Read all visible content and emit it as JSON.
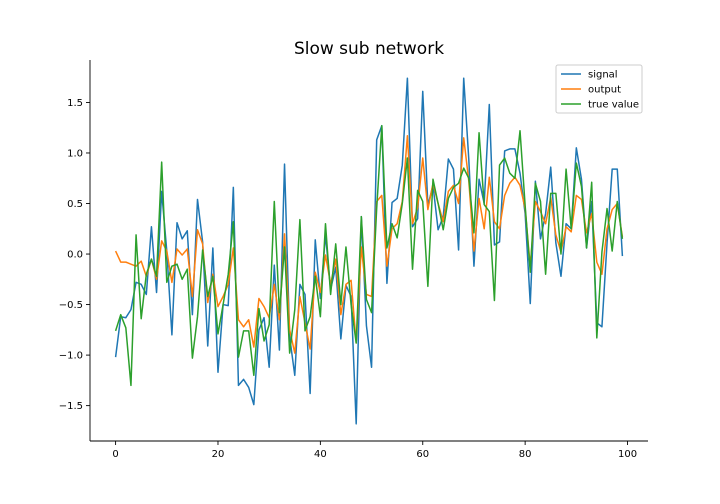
{
  "chart_data": {
    "type": "line",
    "title": "Slow sub network",
    "xlabel": "",
    "ylabel": "",
    "xlim": [
      -5,
      104
    ],
    "ylim": [
      -1.85,
      1.92
    ],
    "xticks": [
      0,
      20,
      40,
      60,
      80,
      100
    ],
    "xtick_labels": [
      "0",
      "20",
      "40",
      "60",
      "80",
      "100"
    ],
    "yticks": [
      -1.5,
      -1.0,
      -0.5,
      0.0,
      0.5,
      1.0,
      1.5
    ],
    "ytick_labels": [
      "−1.5",
      "−1.0",
      "−0.5",
      "0.0",
      "0.5",
      "1.0",
      "1.5"
    ],
    "grid": false,
    "legend_position": "top-right",
    "colors": [
      "#1f77b4",
      "#ff7f0e",
      "#2ca02c"
    ],
    "series": [
      {
        "name": "signal",
        "values": [
          -1.02,
          -0.62,
          -0.63,
          -0.55,
          -0.28,
          -0.3,
          -0.4,
          0.27,
          -0.38,
          0.62,
          0.03,
          -0.8,
          0.31,
          0.15,
          0.23,
          -0.6,
          0.54,
          0.12,
          -0.91,
          0.06,
          -1.17,
          -0.5,
          -0.51,
          0.66,
          -1.3,
          -1.24,
          -1.32,
          -1.49,
          -0.75,
          -0.63,
          -1.12,
          -0.11,
          -0.95,
          0.89,
          -0.82,
          -1.2,
          -0.3,
          -0.4,
          -1.38,
          0.14,
          -0.44,
          0.19,
          -0.35,
          -0.13,
          -0.84,
          -0.31,
          -0.42,
          -1.68,
          0.37,
          -0.71,
          -1.12,
          1.13,
          1.27,
          -0.29,
          0.51,
          0.55,
          0.88,
          1.74,
          0.27,
          0.35,
          1.61,
          0.48,
          0.68,
          0.24,
          0.37,
          0.94,
          0.84,
          0.04,
          1.74,
          0.93,
          -0.12,
          0.74,
          0.5,
          1.48,
          0.09,
          0.12,
          1.02,
          1.04,
          1.04,
          0.8,
          0.4,
          -0.49,
          0.72,
          0.15,
          0.4,
          0.86,
          0.11,
          -0.22,
          0.3,
          0.25,
          1.05,
          0.74,
          0.06,
          0.52,
          -0.68,
          -0.72,
          0.11,
          0.84,
          0.84,
          -0.02
        ]
      },
      {
        "name": "output",
        "values": [
          0.03,
          -0.08,
          -0.08,
          -0.1,
          -0.12,
          -0.07,
          -0.22,
          -0.05,
          -0.25,
          0.13,
          0.03,
          -0.28,
          0.05,
          -0.01,
          0.05,
          -0.42,
          0.24,
          0.1,
          -0.48,
          -0.2,
          -0.52,
          -0.42,
          -0.3,
          0.06,
          -0.65,
          -0.72,
          -0.65,
          -0.92,
          -0.44,
          -0.52,
          -0.63,
          -0.3,
          -0.65,
          0.2,
          -0.75,
          -0.98,
          -0.42,
          -0.68,
          -0.94,
          -0.18,
          -0.38,
          -0.01,
          -0.3,
          -0.05,
          -0.6,
          -0.3,
          -0.26,
          -0.88,
          0.07,
          -0.4,
          -0.42,
          0.52,
          0.58,
          -0.12,
          0.25,
          0.3,
          0.52,
          1.17,
          0.3,
          0.46,
          0.95,
          0.44,
          0.7,
          0.5,
          0.32,
          0.62,
          0.68,
          0.5,
          1.15,
          0.72,
          0.03,
          0.55,
          0.25,
          0.76,
          0.32,
          0.25,
          0.58,
          0.7,
          0.76,
          0.68,
          0.45,
          -0.12,
          0.52,
          0.42,
          0.3,
          0.56,
          0.19,
          0.02,
          0.27,
          0.22,
          0.58,
          0.54,
          0.21,
          0.4,
          -0.08,
          -0.2,
          0.25,
          0.44,
          0.5,
          0.17
        ]
      },
      {
        "name": "true value",
        "values": [
          -0.76,
          -0.6,
          -0.73,
          -1.3,
          0.19,
          -0.64,
          -0.2,
          -0.05,
          -0.22,
          0.91,
          -0.28,
          -0.12,
          -0.1,
          -0.25,
          -0.15,
          -1.03,
          -0.62,
          0.04,
          -0.42,
          -0.22,
          -0.79,
          -0.5,
          -0.2,
          0.32,
          -1.02,
          -0.76,
          -0.76,
          -1.2,
          -0.54,
          -0.86,
          -0.7,
          0.52,
          -0.58,
          0.07,
          -0.98,
          -0.55,
          0.34,
          -0.76,
          -0.62,
          -0.22,
          -0.62,
          0.3,
          -0.4,
          0.1,
          -0.5,
          0.07,
          -0.5,
          -0.88,
          0.37,
          -0.45,
          -0.58,
          0.45,
          1.27,
          0.06,
          0.3,
          0.16,
          0.5,
          0.95,
          -0.15,
          0.63,
          0.52,
          -0.32,
          0.74,
          0.5,
          0.24,
          0.55,
          0.66,
          0.7,
          0.85,
          0.75,
          0.21,
          1.2,
          0.49,
          0.42,
          -0.46,
          0.88,
          0.95,
          0.8,
          0.75,
          1.22,
          0.48,
          -0.18,
          0.7,
          0.52,
          -0.2,
          0.6,
          0.6,
          0.0,
          0.84,
          0.25,
          0.9,
          0.67,
          0.06,
          0.71,
          -0.83,
          0.02,
          0.45,
          0.03,
          0.52,
          0.15
        ]
      }
    ]
  }
}
